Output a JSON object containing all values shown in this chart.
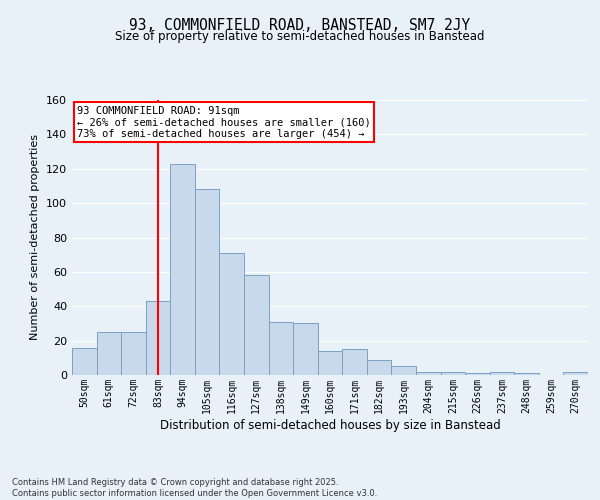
{
  "title": "93, COMMONFIELD ROAD, BANSTEAD, SM7 2JY",
  "subtitle": "Size of property relative to semi-detached houses in Banstead",
  "xlabel": "Distribution of semi-detached houses by size in Banstead",
  "ylabel_text": "Number of semi-detached properties",
  "categories": [
    "50sqm",
    "61sqm",
    "72sqm",
    "83sqm",
    "94sqm",
    "105sqm",
    "116sqm",
    "127sqm",
    "138sqm",
    "149sqm",
    "160sqm",
    "171sqm",
    "182sqm",
    "193sqm",
    "204sqm",
    "215sqm",
    "226sqm",
    "237sqm",
    "248sqm",
    "259sqm",
    "270sqm"
  ],
  "values": [
    16,
    25,
    25,
    43,
    123,
    108,
    71,
    58,
    31,
    30,
    14,
    15,
    9,
    5,
    2,
    2,
    1,
    2,
    1,
    0,
    2
  ],
  "bar_color": "#c9d9ec",
  "bar_edge_color": "#7aa0c4",
  "vline_index": 3.5,
  "vline_color": "red",
  "annotation_text": "93 COMMONFIELD ROAD: 91sqm\n← 26% of semi-detached houses are smaller (160)\n73% of semi-detached houses are larger (454) →",
  "annotation_box_color": "white",
  "annotation_box_edge": "red",
  "footer_text": "Contains HM Land Registry data © Crown copyright and database right 2025.\nContains public sector information licensed under the Open Government Licence v3.0.",
  "ylim": [
    0,
    160
  ],
  "background_color": "#e8f0f8",
  "plot_background": "#e8f0f8"
}
